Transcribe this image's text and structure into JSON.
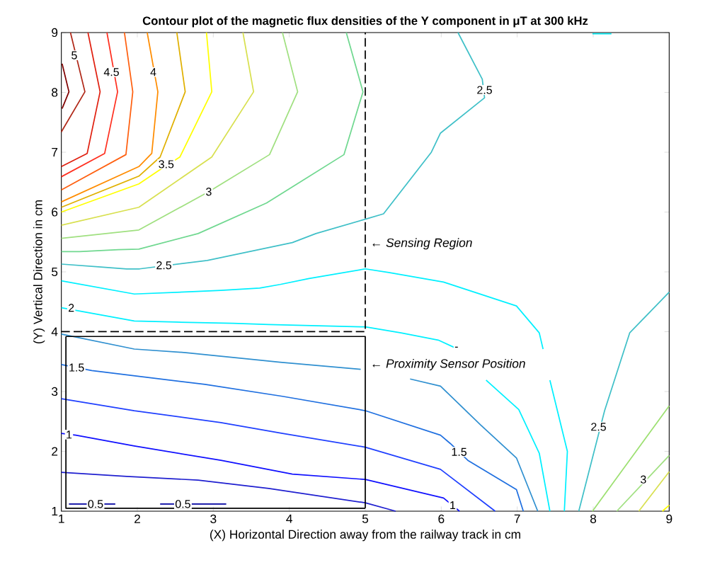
{
  "chart_data": {
    "type": "line",
    "title": "Contour plot of the magnetic flux densities of the Y component  in μT at 300 kHz",
    "xlabel": "(X) Horizontal Direction away from the railway track in cm",
    "ylabel": "(Y) Vertical Direction in cm",
    "xlim": [
      1,
      9
    ],
    "ylim": [
      1,
      9
    ],
    "xticks": [
      1,
      2,
      3,
      4,
      5,
      6,
      7,
      8,
      9
    ],
    "yticks": [
      1,
      2,
      3,
      4,
      5,
      6,
      7,
      8,
      9
    ],
    "grid": false,
    "marker": "none",
    "line_style": "solid",
    "series": [
      {
        "color": "#800000",
        "x": [
          1.01,
          1.1,
          1.01
        ],
        "values": [
          8.48,
          8.01,
          7.73
        ]
      },
      {
        "color": "#b02818",
        "x": [
          1.12,
          1.31,
          1.0
        ],
        "values": [
          9.0,
          8.01,
          7.34
        ]
      },
      {
        "color": "#e02010",
        "x": [
          1.35,
          1.51,
          1.34,
          1.0
        ],
        "values": [
          9.0,
          8.01,
          6.98,
          6.76
        ]
      },
      {
        "color": "#ff3020",
        "x": [
          1.6,
          1.74,
          1.57,
          1.0
        ],
        "values": [
          9.0,
          8.01,
          6.98,
          6.59
        ]
      },
      {
        "color": "#ff6010",
        "x": [
          1.83,
          1.94,
          1.85,
          1.0
        ],
        "values": [
          9.0,
          8.01,
          6.96,
          6.37
        ]
      },
      {
        "color": "#ff8c00",
        "x": [
          2.13,
          2.27,
          2.19,
          2.02,
          1.0
        ],
        "values": [
          9.0,
          8.01,
          6.98,
          6.76,
          6.17
        ]
      },
      {
        "color": "#e0b000",
        "x": [
          2.52,
          2.63,
          2.3,
          2.02,
          1.0
        ],
        "values": [
          9.0,
          8.01,
          6.92,
          6.6,
          6.08
        ]
      },
      {
        "color": "#ffff00",
        "x": [
          2.91,
          2.98,
          2.56,
          2.3,
          2.02,
          1.0
        ],
        "values": [
          9.0,
          8.01,
          6.92,
          6.71,
          6.47,
          6.0
        ]
      },
      {
        "color": "#d8e050",
        "x": [
          3.39,
          3.53,
          2.98,
          2.02,
          1.0
        ],
        "values": [
          9.0,
          8.01,
          6.92,
          6.08,
          5.78
        ]
      },
      {
        "color": "#a0e080",
        "x": [
          3.91,
          4.11,
          3.74,
          2.94,
          2.02,
          1.0
        ],
        "values": [
          9.0,
          8.01,
          6.96,
          6.34,
          5.7,
          5.56
        ]
      },
      {
        "color": "#70d890",
        "x": [
          4.75,
          4.97,
          4.72,
          3.7,
          2.8,
          2.02,
          1.75,
          1.24,
          1.0
        ],
        "values": [
          9.0,
          8.01,
          6.96,
          6.15,
          5.64,
          5.38,
          5.37,
          5.34,
          5.34
        ]
      },
      {
        "color": "#40c0c8",
        "x": [
          6.22,
          6.54,
          6.57,
          5.99,
          5.87,
          5.24,
          5.0,
          4.35,
          4.04,
          2.92,
          2.03,
          1.86,
          1.52,
          1.0
        ],
        "values": [
          9.0,
          8.22,
          7.91,
          7.32,
          7.0,
          5.97,
          5.88,
          5.64,
          5.49,
          5.19,
          5.05,
          5.05,
          5.08,
          5.13
        ]
      },
      {
        "color": "#40c0c8",
        "x": [
          9.0,
          8.48,
          8.15,
          7.99,
          7.81
        ],
        "values": [
          4.66,
          3.98,
          2.68,
          1.89,
          1.0
        ]
      },
      {
        "color": "#00e8f0",
        "x": [
          7.99,
          8.24
        ],
        "values": [
          8.98,
          8.98
        ]
      },
      {
        "color": "#00f0ff",
        "x": [
          1.0,
          1.96,
          2.73,
          3.1,
          3.61,
          3.88,
          4.26,
          5.0,
          5.31,
          6.03,
          6.99,
          7.29,
          7.34,
          null,
          7.43,
          7.66,
          7.62
        ],
        "values": [
          4.85,
          4.63,
          4.67,
          4.69,
          4.73,
          4.79,
          4.89,
          5.05,
          4.99,
          4.83,
          4.43,
          3.98,
          3.71,
          null,
          3.19,
          2.0,
          1.0
        ]
      },
      {
        "color": "#00f0ff",
        "x": [
          1.0,
          1.96,
          2.52,
          3.26,
          3.73,
          5.0,
          5.47,
          5.96,
          6.2,
          null,
          6.59,
          7.02,
          7.29,
          7.43
        ],
        "values": [
          4.4,
          4.18,
          4.16,
          4.14,
          4.12,
          4.08,
          3.98,
          3.86,
          3.72,
          null,
          3.19,
          2.7,
          1.97,
          1.0
        ]
      },
      {
        "color": "#3090d0",
        "x": [
          1.0,
          1.96,
          2.64,
          3.1,
          3.88,
          4.94,
          null,
          5.59,
          5.99,
          6.52,
          6.99,
          7.27
        ],
        "values": [
          3.96,
          3.71,
          3.65,
          3.59,
          3.49,
          3.37,
          null,
          3.21,
          3.09,
          2.44,
          1.89,
          1.0
        ]
      },
      {
        "color": "#2070e0",
        "x": [
          1.0,
          1.4,
          2.89,
          3.91,
          5.0,
          5.99,
          6.12,
          6.35,
          6.99,
          7.08
        ],
        "values": [
          3.45,
          3.35,
          3.12,
          2.92,
          2.68,
          2.27,
          2.13,
          1.85,
          1.36,
          1.0
        ]
      },
      {
        "color": "#2040ff",
        "x": [
          1.0,
          1.96,
          3.1,
          3.91,
          5.0,
          5.99,
          6.71
        ],
        "values": [
          2.88,
          2.68,
          2.48,
          2.3,
          2.07,
          1.7,
          1.0
        ]
      },
      {
        "color": "#1010ff",
        "x": [
          1.0,
          1.19,
          1.96,
          3.1,
          4.04,
          5.0,
          6.03,
          6.24
        ],
        "values": [
          2.3,
          2.27,
          2.09,
          1.85,
          1.62,
          1.53,
          1.22,
          1.0
        ]
      },
      {
        "color": "#2020d0",
        "x": [
          1.0,
          1.86,
          2.8,
          3.73,
          5.0,
          5.4
        ],
        "values": [
          1.65,
          1.58,
          1.52,
          1.38,
          1.14,
          1.0
        ]
      },
      {
        "color": "#0000a0",
        "x": [
          1.1,
          1.71
        ],
        "values": [
          1.12,
          1.12
        ]
      },
      {
        "color": "#0000a0",
        "x": [
          2.3,
          3.17
        ],
        "values": [
          1.12,
          1.12
        ]
      },
      {
        "color": "#9ce070",
        "x": [
          9.0,
          7.99
        ],
        "values": [
          2.76,
          1.0
        ]
      },
      {
        "color": "#a0e080",
        "x": [
          9.0,
          8.31
        ],
        "values": [
          1.93,
          1.0
        ]
      },
      {
        "color": "#d8e050",
        "x": [
          9.0,
          8.6
        ],
        "values": [
          1.66,
          1.0
        ]
      },
      {
        "color": "#ffff00",
        "x": [
          9.0,
          8.91
        ],
        "values": [
          1.1,
          1.0
        ]
      },
      {
        "color": "#000000",
        "line_style": "dashed",
        "x": [
          1.0,
          5.0,
          5.0
        ],
        "values": [
          4.0,
          4.0,
          9.0
        ]
      },
      {
        "color": "#000000",
        "line_style": "solid",
        "x": [
          1.06,
          1.06,
          5.0
        ],
        "values": [
          3.92,
          1.05,
          1.05
        ]
      },
      {
        "color": "#000000",
        "line_style": "solid",
        "x": [
          5.0,
          5.0,
          1.06
        ],
        "values": [
          1.05,
          3.92,
          3.92
        ]
      }
    ],
    "annotations": [
      {
        "text": "5",
        "x": 1.17,
        "y": 8.62
      },
      {
        "text": "4.5",
        "x": 1.66,
        "y": 8.34
      },
      {
        "text": "4",
        "x": 2.21,
        "y": 8.34
      },
      {
        "text": "3.5",
        "x": 2.38,
        "y": 6.8
      },
      {
        "text": "3",
        "x": 2.94,
        "y": 6.34
      },
      {
        "text": "2.5",
        "x": 2.35,
        "y": 5.11
      },
      {
        "text": "2.5",
        "x": 6.57,
        "y": 8.04
      },
      {
        "text": "2",
        "x": 1.13,
        "y": 4.4
      },
      {
        "text": "1.5",
        "x": 1.2,
        "y": 3.4
      },
      {
        "text": "1",
        "x": 1.1,
        "y": 2.28
      },
      {
        "text": "0.5",
        "x": 1.45,
        "y": 1.12
      },
      {
        "text": "0.5",
        "x": 2.6,
        "y": 1.12
      },
      {
        "text": "-",
        "x": 6.2,
        "y": 3.72
      },
      {
        "text": "1.5",
        "x": 6.235,
        "y": 1.99
      },
      {
        "text": "1",
        "x": 6.15,
        "y": 1.1
      },
      {
        "text": "2.5",
        "x": 8.07,
        "y": 2.41
      },
      {
        "text": "3",
        "x": 8.66,
        "y": 1.53
      },
      {
        "text": "← Sensing Region",
        "x": 5.0,
        "y": 5.47
      },
      {
        "text": "← Proximity Sensor Position",
        "x": 5.0,
        "y": 3.45
      }
    ]
  }
}
